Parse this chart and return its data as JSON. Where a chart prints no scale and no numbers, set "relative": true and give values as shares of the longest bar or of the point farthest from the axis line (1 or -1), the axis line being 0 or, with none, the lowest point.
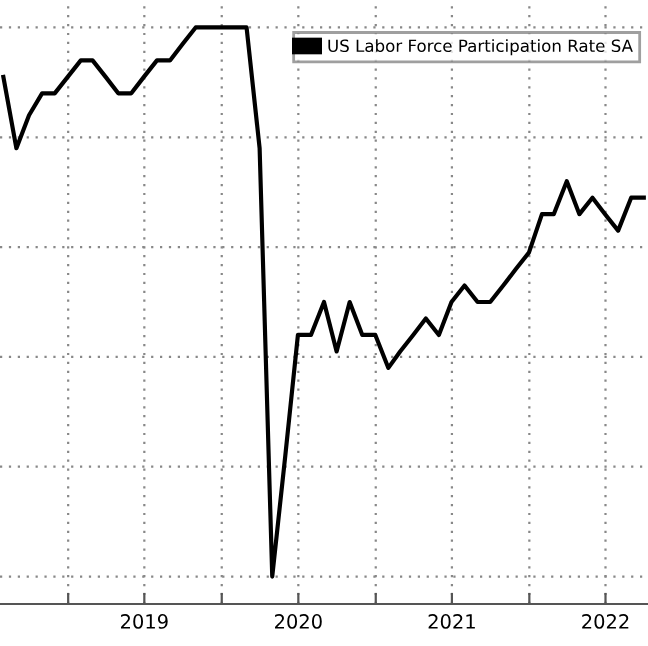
{
  "chart_data": {
    "type": "line",
    "relative": true,
    "x": [
      "2018-07-31",
      "2018-08-31",
      "2018-09-30",
      "2018-10-31",
      "2018-11-30",
      "2018-12-31",
      "2019-01-31",
      "2019-02-28",
      "2019-03-31",
      "2019-04-30",
      "2019-05-31",
      "2019-06-30",
      "2019-07-31",
      "2019-08-31",
      "2019-09-30",
      "2019-10-31",
      "2019-11-30",
      "2019-12-31",
      "2020-01-31",
      "2020-02-29",
      "2020-03-31",
      "2020-04-30",
      "2020-05-31",
      "2020-06-30",
      "2020-07-31",
      "2020-08-31",
      "2020-09-30",
      "2020-10-31",
      "2020-11-30",
      "2020-12-31",
      "2021-01-31",
      "2021-02-28",
      "2021-03-31",
      "2021-04-30",
      "2021-05-31",
      "2021-06-30",
      "2021-07-31",
      "2021-08-31",
      "2021-09-30",
      "2021-10-31",
      "2021-11-30",
      "2021-12-31",
      "2022-01-31",
      "2022-02-28",
      "2022-03-31",
      "2022-04-30",
      "2022-05-31",
      "2022-06-30",
      "2022-07-31",
      "2022-08-31",
      "2022-09-30"
    ],
    "series": [
      {
        "name": "US Labor Force Participation Rate SA",
        "color": "#000000",
        "values": [
          0.91,
          0.78,
          0.84,
          0.88,
          0.88,
          0.91,
          0.94,
          0.94,
          0.91,
          0.88,
          0.88,
          0.91,
          0.94,
          0.94,
          0.97,
          1,
          1,
          1,
          1,
          1,
          0.78,
          0,
          0.22,
          0.44,
          0.44,
          0.5,
          0.41,
          0.5,
          0.44,
          0.44,
          0.38,
          0.41,
          0.44,
          0.47,
          0.44,
          0.5,
          0.53,
          0.5,
          0.5,
          0.53,
          0.56,
          0.59,
          0.66,
          0.66,
          0.72,
          0.66,
          0.69,
          0.66,
          0.63,
          0.69,
          0.69
        ]
      }
    ],
    "xlim": [
      "2018-07-23",
      "2022-10-10"
    ],
    "xticks": [
      {
        "value": "2019-01-01",
        "label": null
      },
      {
        "value": "2019-07-01",
        "label": "2019"
      },
      {
        "value": "2020-01-01",
        "label": null
      },
      {
        "value": "2020-07-01",
        "label": "2020"
      },
      {
        "value": "2021-01-01",
        "label": null
      },
      {
        "value": "2021-07-01",
        "label": "2021"
      },
      {
        "value": "2022-01-01",
        "label": null
      },
      {
        "value": "2022-07-01",
        "label": "2022"
      }
    ],
    "grid": true,
    "legend": "top right",
    "tick_labels": "x",
    "marker": "none",
    "line_style": "solid"
  }
}
